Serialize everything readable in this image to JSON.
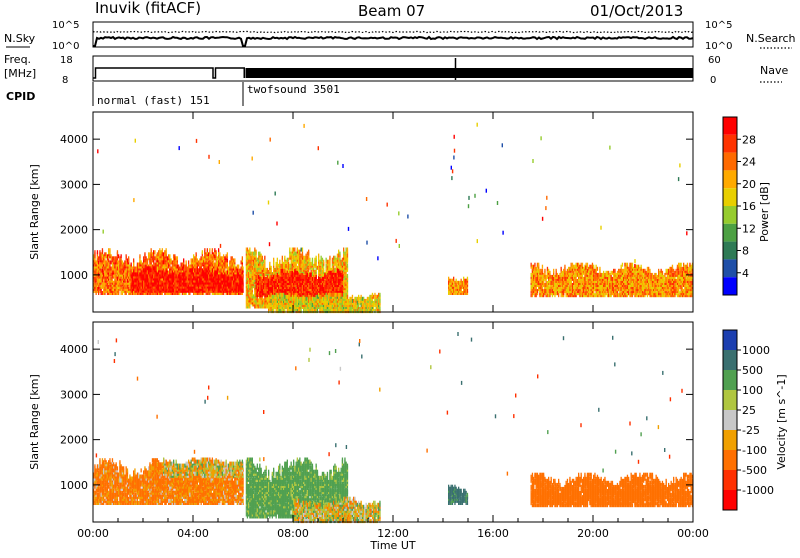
{
  "header": {
    "station": "Inuvik (fitACF)",
    "beam": "Beam 07",
    "date": "01/Oct/2013"
  },
  "strips": {
    "nsky_label": "N.Sky",
    "nsearch_label": "N.Search",
    "nsky_ticks": [
      "10^5",
      "10^0"
    ],
    "nsearch_ticks": [
      "10^5",
      "10^0"
    ],
    "freq_label_1": "Freq.",
    "freq_label_2": "[MHz]",
    "freq_ticks": [
      "18",
      "8"
    ],
    "nave_label": "Nave",
    "nave_ticks": [
      "60",
      "0"
    ],
    "cpid_label": "CPID",
    "cpid_segments": [
      {
        "label": "normal (fast) 151",
        "start_hour": 0.0,
        "end_hour": 6.1
      },
      {
        "label": "twofsound 3501",
        "start_hour": 6.1,
        "end_hour": 24.0
      }
    ]
  },
  "axes": {
    "x_ticks": [
      "00:00",
      "04:00",
      "08:00",
      "12:00",
      "16:00",
      "20:00",
      "00:00"
    ],
    "x_label": "Time UT",
    "y_ticks": [
      "1000",
      "2000",
      "3000",
      "4000"
    ],
    "y_label": "Slant Range [km]"
  },
  "colorbars": {
    "power": {
      "label": "Power [dB]",
      "ticks": [
        "28",
        "24",
        "20",
        "16",
        "12",
        "8",
        "4"
      ],
      "colors": [
        "#ff0000",
        "#ff3300",
        "#ff6a00",
        "#ffaa00",
        "#e8cf00",
        "#96cc2e",
        "#4ca043",
        "#2e7a55",
        "#1f4fa8",
        "#0000ff"
      ]
    },
    "velocity": {
      "label": "Velocity [m s^-1]",
      "ticks": [
        "1000",
        "500",
        "100",
        "25",
        "-25",
        "-100",
        "-500",
        "-1000"
      ],
      "colors": [
        "#1c3fb0",
        "#3a7070",
        "#50a050",
        "#b0c640",
        "#c8c8c8",
        "#f0a000",
        "#ff7000",
        "#ff3000",
        "#ff0000"
      ]
    }
  },
  "chart_data": [
    {
      "type": "heatmap",
      "title": "Power [dB]",
      "xlabel": "Time UT",
      "ylabel": "Slant Range [km]",
      "xlim": [
        0,
        24
      ],
      "ylim": [
        180,
        4600
      ],
      "clim": [
        0,
        32
      ],
      "x_units": "hours UT",
      "regions": [
        {
          "t0": 0.0,
          "t1": 6.1,
          "r0": 600,
          "r1": 1550,
          "level": 24
        },
        {
          "t0": 1.5,
          "t1": 6.0,
          "r0": 650,
          "r1": 1150,
          "level": 30
        },
        {
          "t0": 6.1,
          "t1": 10.2,
          "r0": 300,
          "r1": 1600,
          "level": 20
        },
        {
          "t0": 6.5,
          "t1": 10.0,
          "r0": 550,
          "r1": 1100,
          "level": 29
        },
        {
          "t0": 7.0,
          "t1": 11.5,
          "r0": 200,
          "r1": 600,
          "level": 18
        },
        {
          "t0": 14.2,
          "t1": 15.0,
          "r0": 600,
          "r1": 1000,
          "level": 22
        },
        {
          "t0": 17.5,
          "t1": 24.0,
          "r0": 550,
          "r1": 1250,
          "level": 22
        }
      ]
    },
    {
      "type": "heatmap",
      "title": "Velocity [m s^-1]",
      "xlabel": "Time UT",
      "ylabel": "Slant Range [km]",
      "xlim": [
        0,
        24
      ],
      "ylim": [
        180,
        4600
      ],
      "clim": [
        -1000,
        1000
      ],
      "x_units": "hours UT",
      "regions": [
        {
          "t0": 0.0,
          "t1": 6.1,
          "r0": 600,
          "r1": 1550,
          "level": -150
        },
        {
          "t0": 2.8,
          "t1": 6.0,
          "r0": 1200,
          "r1": 1600,
          "level": 0
        },
        {
          "t0": 6.1,
          "t1": 10.2,
          "r0": 300,
          "r1": 1600,
          "level": 200
        },
        {
          "t0": 8.0,
          "t1": 11.5,
          "r0": 200,
          "r1": 700,
          "level": 0
        },
        {
          "t0": 14.2,
          "t1": 15.0,
          "r0": 600,
          "r1": 1000,
          "level": 600
        },
        {
          "t0": 17.5,
          "t1": 24.0,
          "r0": 550,
          "r1": 1250,
          "level": -300
        }
      ]
    }
  ]
}
